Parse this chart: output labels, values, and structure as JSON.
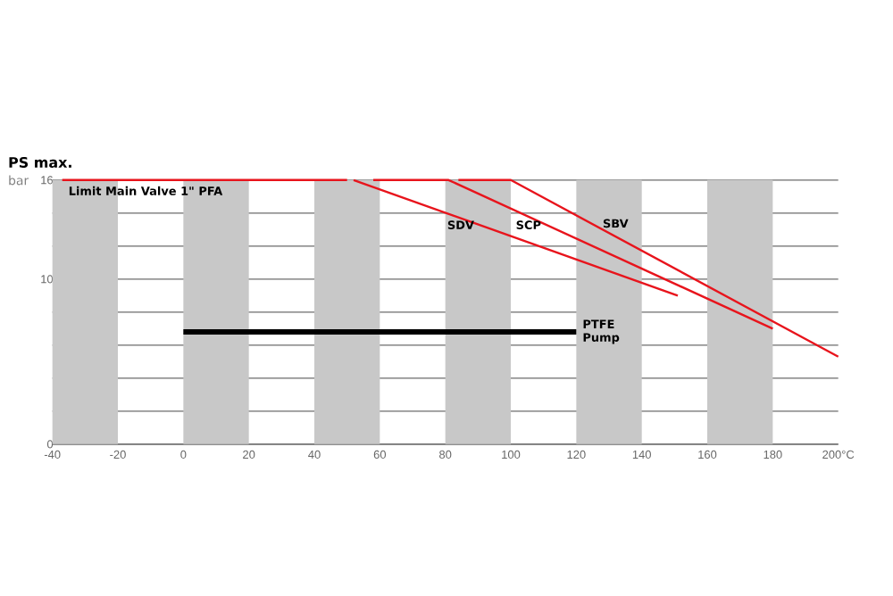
{
  "chart_data": {
    "type": "line",
    "title": "PS max.",
    "ylabel": "bar",
    "xlim": [
      -40,
      200
    ],
    "xticks": [
      -40,
      -20,
      0,
      20,
      40,
      60,
      80,
      100,
      120,
      140,
      160,
      180,
      {
        "value": 200,
        "label": "200°C"
      }
    ],
    "ylim": [
      0,
      16
    ],
    "yticks": [
      0,
      {
        "value": 2,
        "label": null
      },
      {
        "value": 4,
        "label": null
      },
      {
        "value": 6,
        "label": null
      },
      {
        "value": 8,
        "label": null
      },
      10,
      {
        "value": 12,
        "label": null
      },
      {
        "value": 14,
        "label": null
      },
      16
    ],
    "grid": "y",
    "marker": "none",
    "line_style": "solid",
    "bands": [
      {
        "axis": "x",
        "from": -40,
        "to": -20,
        "color": "#c8c8c8"
      },
      {
        "axis": "x",
        "from": 0,
        "to": 20,
        "color": "#c8c8c8"
      },
      {
        "axis": "x",
        "from": 40,
        "to": 60,
        "color": "#c8c8c8"
      },
      {
        "axis": "x",
        "from": 80,
        "to": 100,
        "color": "#c8c8c8"
      },
      {
        "axis": "x",
        "from": 120,
        "to": 140,
        "color": "#c8c8c8"
      },
      {
        "axis": "x",
        "from": 160,
        "to": 180,
        "color": "#c8c8c8"
      }
    ],
    "series": [
      {
        "name": "Limit Main Valve 1\" PFA",
        "color": "#e8141c",
        "x": [
          -37,
          50
        ],
        "values": [
          16,
          16
        ]
      },
      {
        "name": "SDV",
        "color": "#e8141c",
        "x": [
          52,
          151
        ],
        "values": [
          16,
          9
        ]
      },
      {
        "name": "SCP",
        "color": "#e8141c",
        "x": [
          58,
          81,
          180
        ],
        "values": [
          16,
          16,
          7
        ]
      },
      {
        "name": "SBV",
        "color": "#e8141c",
        "x": [
          84,
          100,
          200
        ],
        "values": [
          16,
          16,
          5.3
        ]
      },
      {
        "name": "PTFE Pump",
        "color": "#000000",
        "x": [
          0,
          120
        ],
        "values": [
          6.8,
          6.8
        ]
      }
    ]
  }
}
